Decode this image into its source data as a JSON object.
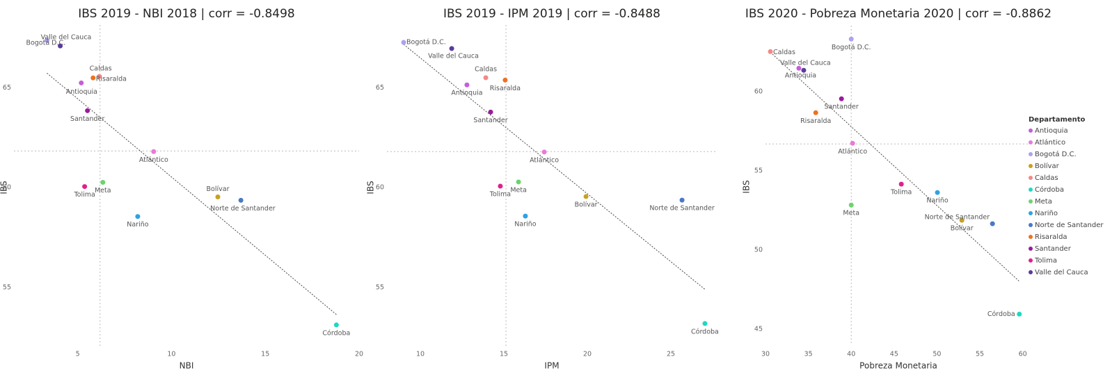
{
  "chart_data": [
    {
      "type": "scatter",
      "title": "IBS 2019 - NBI 2018 | corr = -0.8498",
      "x_label": "NBI",
      "y_label": "IBS",
      "xlim": [
        1.6,
        20
      ],
      "ylim": [
        52,
        68
      ],
      "xticks": [
        5,
        10,
        15,
        20
      ],
      "yticks": [
        55,
        60,
        65
      ],
      "x_mean": 6.19,
      "y_mean": 61.83,
      "trend": {
        "x": [
          3.36,
          18.79
        ],
        "y": [
          65.73,
          53.64
        ]
      },
      "series": [
        {
          "name": "Antioquia",
          "color": "#c45fd8",
          "x": [
            5.19
          ],
          "values": [
            65.24
          ]
        },
        {
          "name": "Atlántico",
          "color": "#e87ad8",
          "x": [
            9.05
          ],
          "values": [
            61.8
          ]
        },
        {
          "name": "Bogotá D.C.",
          "color": "#aea0f2",
          "x": [
            3.36
          ],
          "values": [
            67.37
          ]
        },
        {
          "name": "Bolívar",
          "color": "#c9a020",
          "x": [
            12.47
          ],
          "values": [
            59.53
          ]
        },
        {
          "name": "Caldas",
          "color": "#f28a86",
          "x": [
            6.15
          ],
          "values": [
            65.56
          ]
        },
        {
          "name": "Córdoba",
          "color": "#1fd8c2",
          "x": [
            18.79
          ],
          "values": [
            53.12
          ]
        },
        {
          "name": "Meta",
          "color": "#6cd46c",
          "x": [
            6.34
          ],
          "values": [
            60.26
          ]
        },
        {
          "name": "Nariño",
          "color": "#2ea2e2",
          "x": [
            8.2
          ],
          "values": [
            58.55
          ]
        },
        {
          "name": "Norte de Santander",
          "color": "#4a78c8",
          "x": [
            13.7
          ],
          "values": [
            59.36
          ]
        },
        {
          "name": "Risaralda",
          "color": "#f07020",
          "x": [
            5.82
          ],
          "values": [
            65.49
          ]
        },
        {
          "name": "Santander",
          "color": "#9a1a9a",
          "x": [
            5.52
          ],
          "values": [
            63.85
          ]
        },
        {
          "name": "Tolima",
          "color": "#e0208c",
          "x": [
            5.37
          ],
          "values": [
            60.05
          ]
        },
        {
          "name": "Valle del Cauca",
          "color": "#5b3a9c",
          "x": [
            4.07
          ],
          "values": [
            67.09
          ]
        }
      ]
    },
    {
      "type": "scatter",
      "title": "IBS 2019 - IPM 2019 | corr = -0.8488",
      "x_label": "IPM",
      "y_label": "IBS",
      "xlim": [
        8,
        27.75
      ],
      "ylim": [
        52,
        68
      ],
      "xticks": [
        10,
        15,
        20,
        25
      ],
      "yticks": [
        55,
        60,
        65
      ],
      "x_mean": 15.13,
      "y_mean": 61.8,
      "trend": {
        "x": [
          9.0,
          27.04
        ],
        "y": [
          67.17,
          54.9
        ]
      },
      "series": [
        {
          "name": "Antioquia",
          "color": "#c45fd8",
          "x": [
            12.79
          ],
          "values": [
            65.14
          ]
        },
        {
          "name": "Atlántico",
          "color": "#e87ad8",
          "x": [
            17.42
          ],
          "values": [
            61.78
          ]
        },
        {
          "name": "Bogotá D.C.",
          "color": "#aea0f2",
          "x": [
            9.0
          ],
          "values": [
            67.27
          ]
        },
        {
          "name": "Bolívar",
          "color": "#c9a020",
          "x": [
            19.92
          ],
          "values": [
            59.55
          ]
        },
        {
          "name": "Caldas",
          "color": "#f28a86",
          "x": [
            13.92
          ],
          "values": [
            65.5
          ]
        },
        {
          "name": "Córdoba",
          "color": "#1fd8c2",
          "x": [
            27.04
          ],
          "values": [
            53.19
          ]
        },
        {
          "name": "Meta",
          "color": "#6cd46c",
          "x": [
            15.88
          ],
          "values": [
            60.28
          ]
        },
        {
          "name": "Nariño",
          "color": "#2ea2e2",
          "x": [
            16.29
          ],
          "values": [
            58.57
          ]
        },
        {
          "name": "Norte de Santander",
          "color": "#4a78c8",
          "x": [
            25.67
          ],
          "values": [
            59.37
          ]
        },
        {
          "name": "Risaralda",
          "color": "#f07020",
          "x": [
            15.08
          ],
          "values": [
            65.38
          ]
        },
        {
          "name": "Santander",
          "color": "#9a1a9a",
          "x": [
            14.21
          ],
          "values": [
            63.78
          ]
        },
        {
          "name": "Tolima",
          "color": "#e0208c",
          "x": [
            14.79
          ],
          "values": [
            60.07
          ]
        },
        {
          "name": "Valle del Cauca",
          "color": "#5b3a9c",
          "x": [
            11.88
          ],
          "values": [
            66.96
          ]
        }
      ]
    },
    {
      "type": "scatter",
      "title": "IBS 2020 - Pobreza Monetaria 2020 | corr = -0.8862",
      "x_label": "Pobreza Monetaria",
      "y_label": "IBS",
      "xlim": [
        30,
        61
      ],
      "ylim": [
        44,
        64
      ],
      "xticks": [
        30,
        35,
        40,
        45,
        50,
        55,
        60
      ],
      "yticks": [
        45,
        50,
        55,
        60
      ],
      "x_mean": 40,
      "y_mean": 56.71,
      "trend": {
        "x": [
          30.57,
          59.6
        ],
        "y": [
          62.5,
          48.03
        ]
      },
      "legend": {
        "title": "Departamento",
        "position": "right"
      },
      "series": [
        {
          "name": "Antioquia",
          "color": "#c45fd8",
          "x": [
            33.89
          ],
          "values": [
            61.49
          ]
        },
        {
          "name": "Atlántico",
          "color": "#e87ad8",
          "x": [
            40.16
          ],
          "values": [
            56.75
          ]
        },
        {
          "name": "Bogotá D.C.",
          "color": "#aea0f2",
          "x": [
            40
          ],
          "values": [
            63.33
          ]
        },
        {
          "name": "Bolívar",
          "color": "#c9a020",
          "x": [
            52.9
          ],
          "values": [
            51.89
          ]
        },
        {
          "name": "Caldas",
          "color": "#f28a86",
          "x": [
            30.57
          ],
          "values": [
            62.54
          ]
        },
        {
          "name": "Córdoba",
          "color": "#1fd8c2",
          "x": [
            59.6
          ],
          "values": [
            45.96
          ]
        },
        {
          "name": "Meta",
          "color": "#6cd46c",
          "x": [
            40
          ],
          "values": [
            52.85
          ]
        },
        {
          "name": "Nariño",
          "color": "#2ea2e2",
          "x": [
            50.05
          ],
          "values": [
            53.64
          ]
        },
        {
          "name": "Norte de Santander",
          "color": "#4a78c8",
          "x": [
            56.47
          ],
          "values": [
            51.67
          ]
        },
        {
          "name": "Risaralda",
          "color": "#f07020",
          "x": [
            35.86
          ],
          "values": [
            58.68
          ]
        },
        {
          "name": "Santander",
          "color": "#9a1a9a",
          "x": [
            38.86
          ],
          "values": [
            59.56
          ]
        },
        {
          "name": "Tolima",
          "color": "#e0208c",
          "x": [
            45.84
          ],
          "values": [
            54.17
          ]
        },
        {
          "name": "Valle del Cauca",
          "color": "#5b3a9c",
          "x": [
            34.46
          ],
          "values": [
            61.36
          ]
        }
      ]
    }
  ]
}
